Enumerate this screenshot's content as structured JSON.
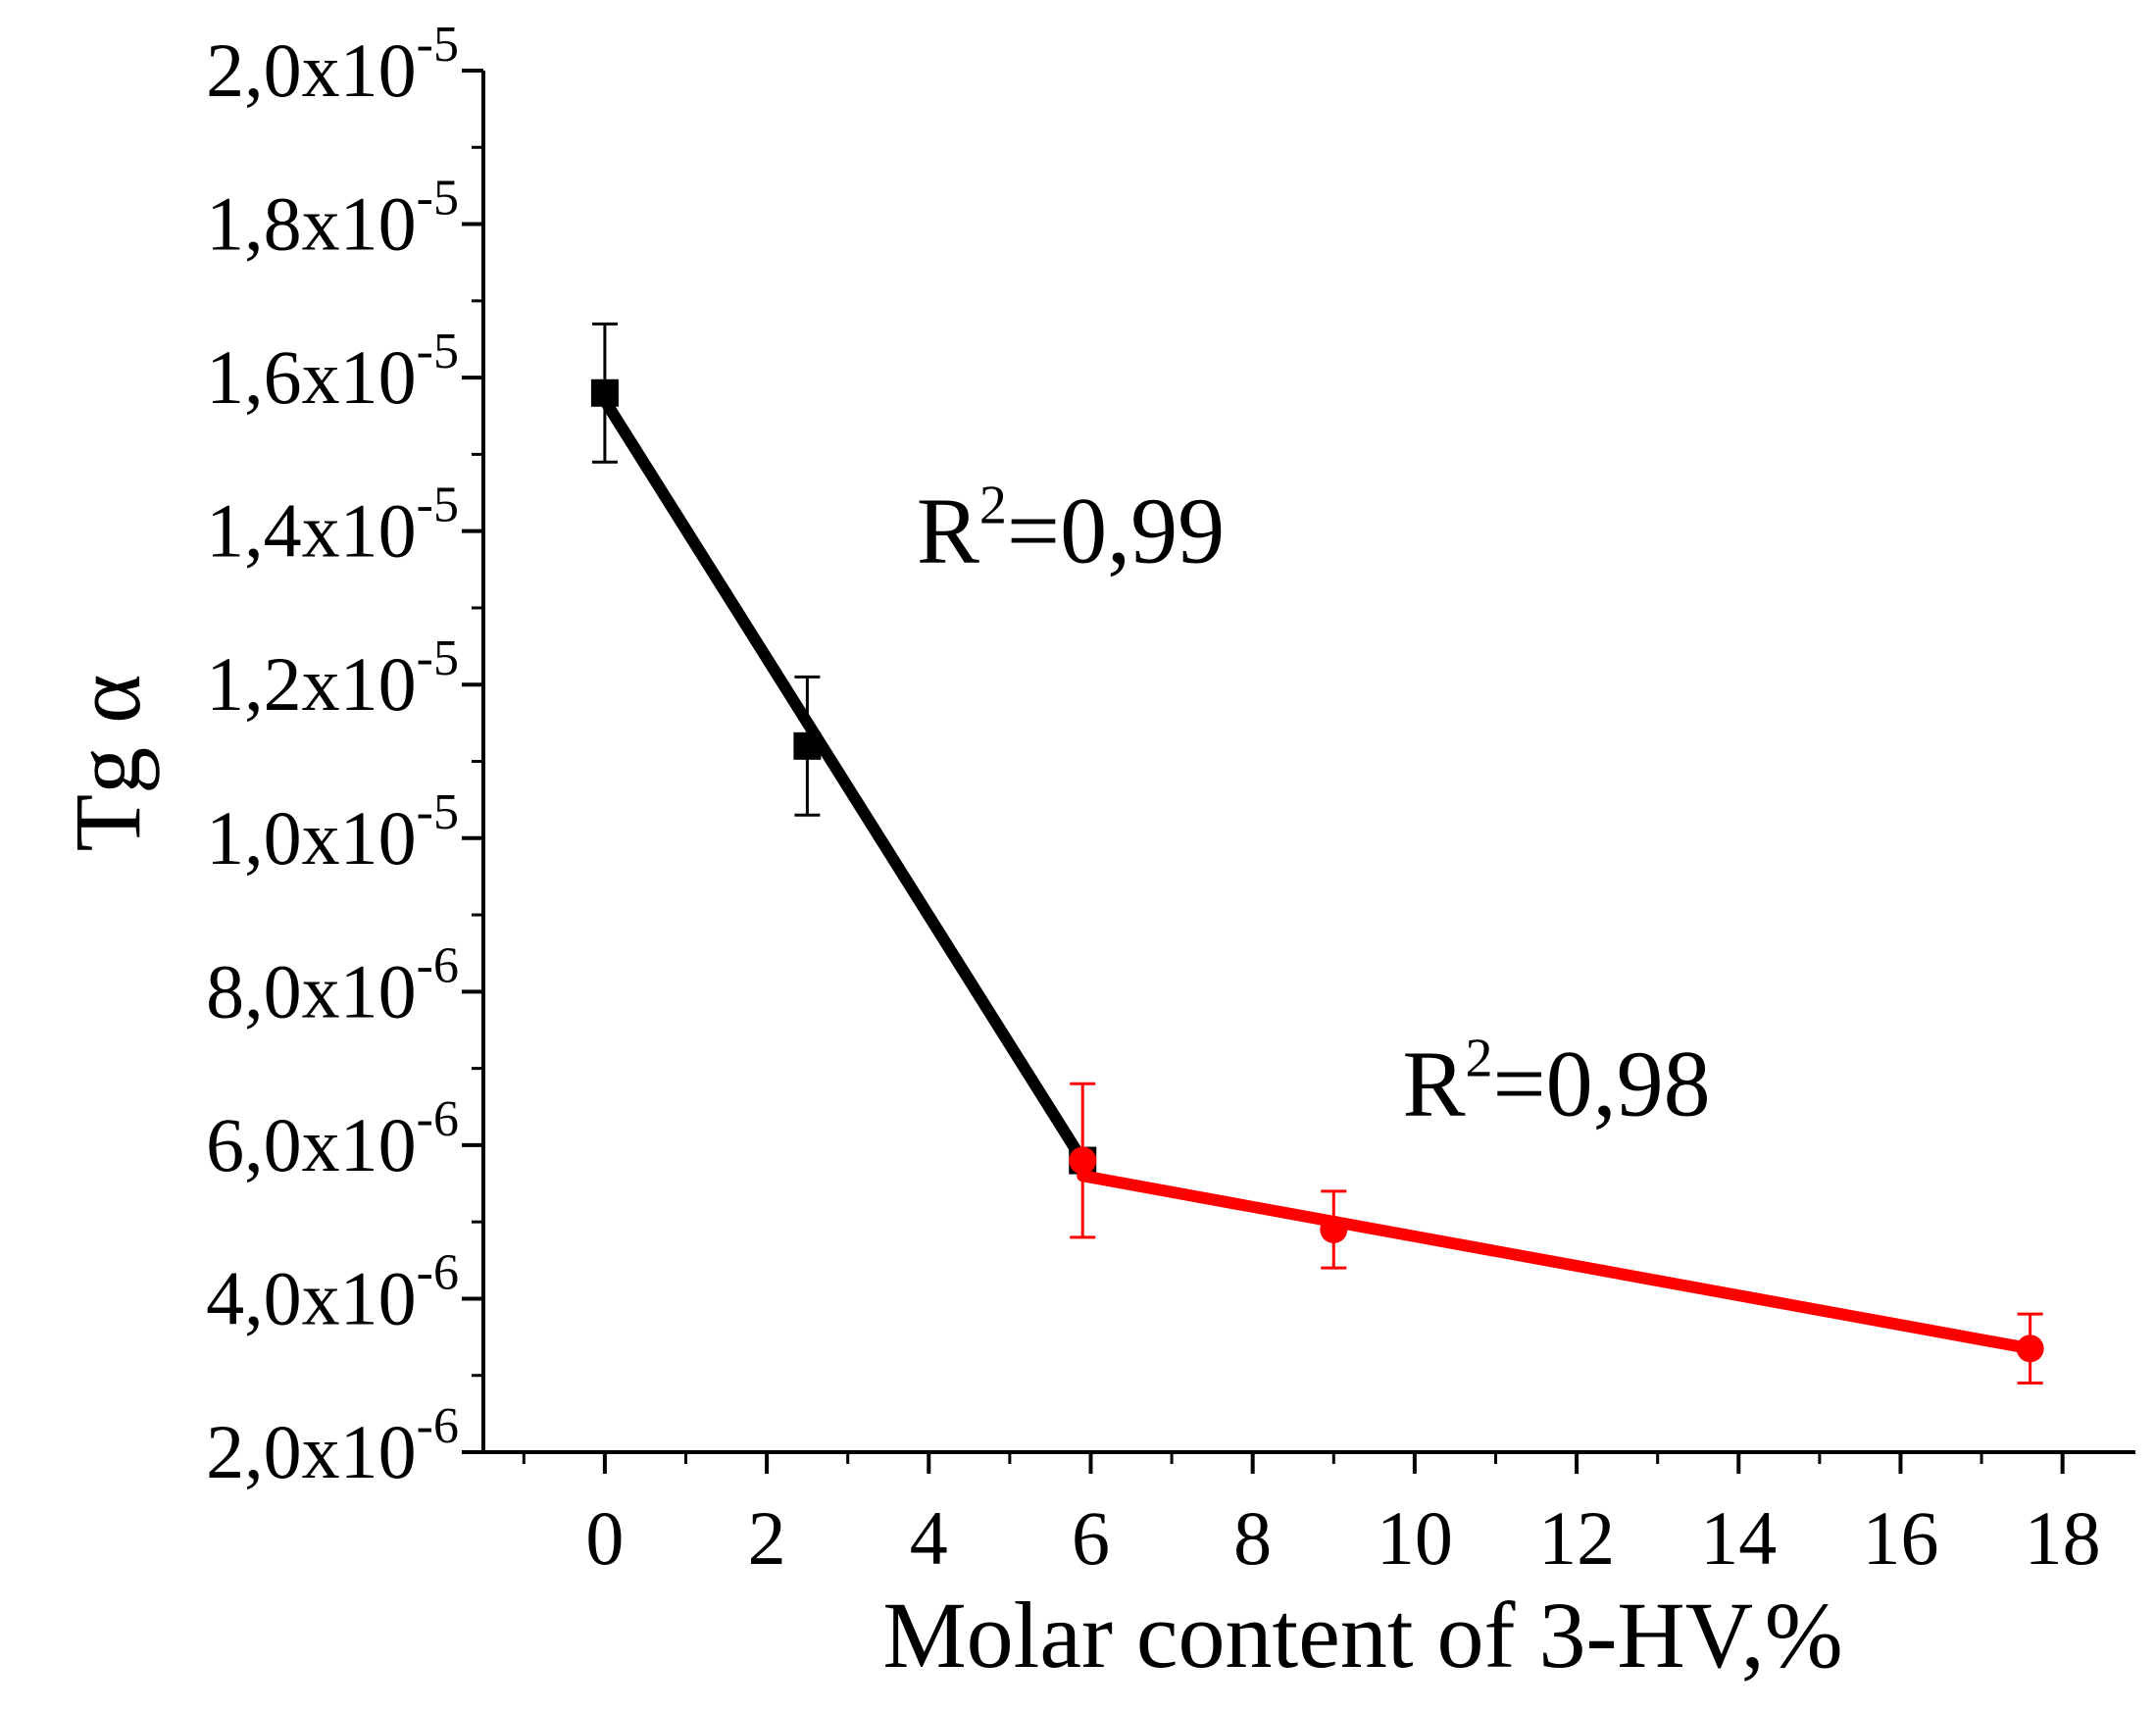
{
  "chart_data": {
    "type": "line",
    "xlabel": "Molar content of 3-HV,%",
    "ylabel": "Tg α",
    "xlim": [
      -1.5,
      18.9
    ],
    "ylim": [
      2e-06,
      2e-05
    ],
    "x_ticks": [
      {
        "value": 0,
        "label": "0"
      },
      {
        "value": 2,
        "label": "2"
      },
      {
        "value": 4,
        "label": "4"
      },
      {
        "value": 6,
        "label": "6"
      },
      {
        "value": 8,
        "label": "8"
      },
      {
        "value": 10,
        "label": "10"
      },
      {
        "value": 12,
        "label": "12"
      },
      {
        "value": 14,
        "label": "14"
      },
      {
        "value": 16,
        "label": "16"
      },
      {
        "value": 18,
        "label": "18"
      }
    ],
    "y_ticks": [
      {
        "value": 2e-06,
        "mantissa": "2,0x10",
        "exponent": "-6"
      },
      {
        "value": 4e-06,
        "mantissa": "4,0x10",
        "exponent": "-6"
      },
      {
        "value": 6e-06,
        "mantissa": "6,0x10",
        "exponent": "-6"
      },
      {
        "value": 8e-06,
        "mantissa": "8,0x10",
        "exponent": "-6"
      },
      {
        "value": 1e-05,
        "mantissa": "1,0x10",
        "exponent": "-5"
      },
      {
        "value": 1.2e-05,
        "mantissa": "1,2x10",
        "exponent": "-5"
      },
      {
        "value": 1.4e-05,
        "mantissa": "1,4x10",
        "exponent": "-5"
      },
      {
        "value": 1.6e-05,
        "mantissa": "1,6x10",
        "exponent": "-5"
      },
      {
        "value": 1.8e-05,
        "mantissa": "1,8x10",
        "exponent": "-5"
      },
      {
        "value": 2e-05,
        "mantissa": "2,0x10",
        "exponent": "-5"
      }
    ],
    "grid": false,
    "series": [
      {
        "color": "#000000",
        "marker": "square",
        "points": [
          {
            "x": 0,
            "y": 1.58e-05,
            "err": 9e-07
          },
          {
            "x": 2.5,
            "y": 1.12e-05,
            "err": 9e-07
          },
          {
            "x": 5.9,
            "y": 5.8e-06,
            "err": 0
          }
        ],
        "fit": [
          [
            0,
            1.57e-05
          ],
          [
            5.9,
            5.8e-06
          ]
        ]
      },
      {
        "color": "#ff0000",
        "marker": "circle",
        "points": [
          {
            "x": 5.9,
            "y": 5.8e-06,
            "err": 1e-06
          },
          {
            "x": 9,
            "y": 4.9e-06,
            "err": 5e-07
          },
          {
            "x": 17.6,
            "y": 3.35e-06,
            "err": 4.5e-07
          }
        ],
        "fit": [
          [
            5.9,
            5.6e-06
          ],
          [
            17.6,
            3.35e-06
          ]
        ]
      }
    ],
    "annotations": [
      {
        "base": "R",
        "sup": "2",
        "rest": "=0,99",
        "x": 3.85,
        "y": 1.4e-05
      },
      {
        "base": "R",
        "sup": "2",
        "rest": "=0,98",
        "x": 9.85,
        "y": 6.8e-06
      }
    ]
  }
}
